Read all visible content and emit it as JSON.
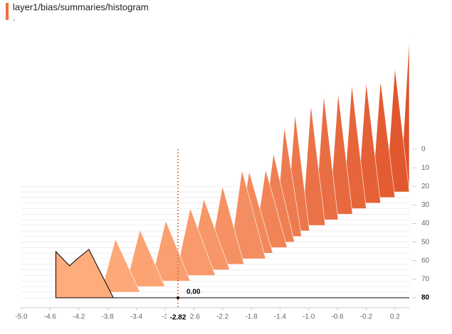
{
  "chart_data": {
    "type": "histogram",
    "title": "layer1/bias/summaries/histogram",
    "subtitle": ".",
    "xlim": [
      -5,
      0.4
    ],
    "ylim": [
      0,
      80
    ],
    "xticks": [
      {
        "value": -5,
        "label": "-5.0"
      },
      -4.6,
      -4.2,
      -3.8,
      -3.4,
      -3,
      -2.6,
      -2.2,
      -1.8,
      -1.4,
      {
        "value": -1,
        "label": "-1.0"
      },
      -0.6,
      -0.2,
      0.2
    ],
    "yticks": [
      0,
      10,
      20,
      30,
      40,
      50,
      60,
      70,
      80
    ],
    "histograms": [
      {
        "step": 20,
        "color": "#e0532a",
        "x": [
          0.28,
          0.4,
          0.4
        ],
        "counts": [
          0,
          210,
          0
        ]
      },
      {
        "step": 23,
        "color": "#e1572e",
        "x": [
          0.08,
          0.2,
          0.4
        ],
        "counts": [
          0,
          175,
          0
        ]
      },
      {
        "step": 26,
        "color": "#e35c32",
        "x": [
          -0.12,
          0,
          0.2
        ],
        "counts": [
          0,
          165,
          0
        ]
      },
      {
        "step": 29,
        "color": "#e56036",
        "x": [
          -0.32,
          -0.2,
          0
        ],
        "counts": [
          0,
          170,
          0
        ]
      },
      {
        "step": 32,
        "color": "#e6653a",
        "x": [
          -0.52,
          -0.4,
          -0.2
        ],
        "counts": [
          0,
          175,
          0
        ]
      },
      {
        "step": 35,
        "color": "#e8693e",
        "x": [
          -0.71,
          -0.59,
          -0.39
        ],
        "counts": [
          0,
          170,
          0
        ]
      },
      {
        "step": 38,
        "color": "#e96e43",
        "x": [
          -0.91,
          -0.79,
          -0.59
        ],
        "counts": [
          0,
          175,
          0
        ]
      },
      {
        "step": 41,
        "color": "#eb7247",
        "x": [
          -1.09,
          -0.97,
          -0.77
        ],
        "counts": [
          0,
          170,
          0
        ]
      },
      {
        "step": 44,
        "color": "#ec774b",
        "x": [
          -1.31,
          -1.19,
          -0.99
        ],
        "counts": [
          0,
          165,
          0
        ]
      },
      {
        "step": 47,
        "color": "#ee7b4f",
        "x": [
          -1.46,
          -1.34,
          -1.1
        ],
        "counts": [
          0,
          155,
          0
        ]
      },
      {
        "step": 50,
        "color": "#ef8053",
        "x": [
          -1.65,
          -1.49,
          -1.2
        ],
        "counts": [
          0,
          125,
          0
        ]
      },
      {
        "step": 53,
        "color": "#f18457",
        "x": [
          -1.76,
          -1.6,
          -1.3
        ],
        "counts": [
          0,
          110,
          0
        ]
      },
      {
        "step": 56,
        "color": "#f3895b",
        "x": [
          -2.0,
          -1.83,
          -1.5
        ],
        "counts": [
          0,
          115,
          0
        ]
      },
      {
        "step": 59,
        "color": "#f48d5f",
        "x": [
          -2.1,
          -1.93,
          -1.6
        ],
        "counts": [
          0,
          125,
          0
        ]
      },
      {
        "step": 62,
        "color": "#f69163",
        "x": [
          -2.4,
          -2.2,
          -1.9
        ],
        "counts": [
          0,
          110,
          0
        ]
      },
      {
        "step": 65,
        "color": "#f79667",
        "x": [
          -2.66,
          -2.46,
          -2.1
        ],
        "counts": [
          0,
          100,
          0
        ]
      },
      {
        "step": 68,
        "color": "#f99a6c",
        "x": [
          -2.85,
          -2.65,
          -2.3
        ],
        "counts": [
          0,
          95,
          0
        ]
      },
      {
        "step": 71,
        "color": "#fa9f70",
        "x": [
          -3.19,
          -2.99,
          -2.65
        ],
        "counts": [
          0,
          85,
          0
        ]
      },
      {
        "step": 74,
        "color": "#fca374",
        "x": [
          -3.55,
          -3.35,
          -3.0
        ],
        "counts": [
          0,
          80,
          0
        ]
      },
      {
        "step": 77,
        "color": "#fda878",
        "x": [
          -3.89,
          -3.69,
          -3.35
        ],
        "counts": [
          0,
          75,
          0
        ]
      },
      {
        "step": 80,
        "color": "#ffac7c",
        "x": [
          -4.52,
          -4.52,
          -4.33,
          -4.22,
          -4.06,
          -3.72
        ],
        "counts": [
          0,
          65,
          45,
          55,
          68,
          0
        ]
      }
    ],
    "hover": {
      "x": -2.82,
      "step": 80,
      "count": {
        "value": 0,
        "label": "0.00"
      }
    }
  }
}
